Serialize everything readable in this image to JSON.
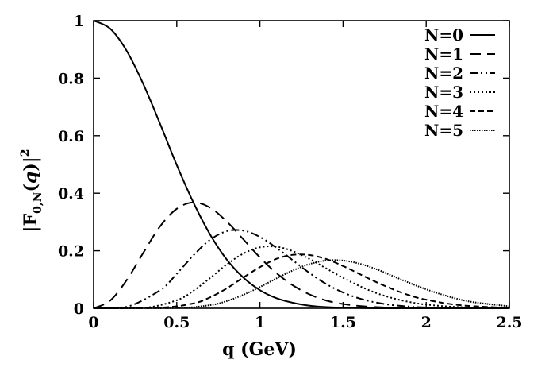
{
  "chart_data": {
    "type": "line",
    "xlabel": "q (GeV)",
    "ylabel": "|F0,N(q)|²",
    "ylabel_parts": {
      "lead": "|F",
      "sub": "0,N",
      "mid": "(",
      "vec": "q",
      "close": ")|",
      "sup": "2"
    },
    "xlim": [
      0,
      2.5
    ],
    "ylim": [
      0,
      1
    ],
    "xticks": [
      0,
      0.5,
      1,
      1.5,
      2,
      2.5
    ],
    "xtick_labels": [
      "0",
      "0.5",
      "1",
      "1.5",
      "2",
      "2.5"
    ],
    "yticks": [
      0,
      0.2,
      0.4,
      0.6,
      0.8,
      1
    ],
    "ytick_labels": [
      "0",
      "0.2",
      "0.4",
      "0.6",
      "0.8",
      "1"
    ],
    "grid": false,
    "legend_position": "top-right",
    "color": "#000000",
    "series": [
      {
        "name": "N=0",
        "style": "solid",
        "x": [
          0,
          0.1,
          0.2,
          0.3,
          0.4,
          0.5,
          0.6,
          0.7,
          0.8,
          0.9,
          1.0,
          1.1,
          1.2,
          1.3,
          1.4,
          1.5,
          1.6,
          1.7,
          1.8,
          2.0,
          2.2,
          2.5
        ],
        "y": [
          1.0,
          0.972,
          0.894,
          0.778,
          0.641,
          0.498,
          0.368,
          0.257,
          0.17,
          0.107,
          0.063,
          0.035,
          0.019,
          0.009,
          0.004,
          0.002,
          0.001,
          0.0,
          0.0,
          0.0,
          0.0,
          0.0
        ]
      },
      {
        "name": "N=1",
        "style": "dashed",
        "x": [
          0,
          0.1,
          0.2,
          0.3,
          0.4,
          0.5,
          0.6,
          0.7,
          0.8,
          0.9,
          1.0,
          1.1,
          1.2,
          1.3,
          1.4,
          1.5,
          1.6,
          1.7,
          1.8,
          2.0,
          2.2,
          2.5
        ],
        "y": [
          0.0,
          0.027,
          0.099,
          0.194,
          0.285,
          0.346,
          0.368,
          0.35,
          0.302,
          0.24,
          0.177,
          0.122,
          0.079,
          0.048,
          0.027,
          0.015,
          0.008,
          0.004,
          0.002,
          0.0,
          0.0,
          0.0
        ]
      },
      {
        "name": "N=2",
        "style": "dashdotdot",
        "x": [
          0,
          0.2,
          0.4,
          0.5,
          0.6,
          0.7,
          0.8,
          0.9,
          1.0,
          1.1,
          1.2,
          1.3,
          1.4,
          1.5,
          1.6,
          1.7,
          1.8,
          1.9,
          2.0,
          2.2,
          2.5
        ],
        "y": [
          0.0,
          0.005,
          0.063,
          0.12,
          0.184,
          0.238,
          0.268,
          0.27,
          0.248,
          0.21,
          0.166,
          0.122,
          0.084,
          0.055,
          0.034,
          0.02,
          0.011,
          0.006,
          0.003,
          0.001,
          0.0
        ]
      },
      {
        "name": "N=3",
        "style": "dotted",
        "x": [
          0,
          0.3,
          0.5,
          0.6,
          0.7,
          0.8,
          0.9,
          1.0,
          1.1,
          1.2,
          1.3,
          1.4,
          1.5,
          1.6,
          1.7,
          1.8,
          1.9,
          2.0,
          2.2,
          2.5
        ],
        "y": [
          0.0,
          0.001,
          0.028,
          0.061,
          0.105,
          0.152,
          0.19,
          0.212,
          0.214,
          0.198,
          0.171,
          0.138,
          0.106,
          0.077,
          0.053,
          0.035,
          0.022,
          0.013,
          0.004,
          0.0
        ]
      },
      {
        "name": "N=4",
        "style": "shortdash",
        "x": [
          0,
          0.4,
          0.6,
          0.7,
          0.8,
          0.9,
          1.0,
          1.1,
          1.2,
          1.3,
          1.4,
          1.5,
          1.6,
          1.7,
          1.8,
          1.9,
          2.0,
          2.2,
          2.5
        ],
        "y": [
          0.0,
          0.002,
          0.017,
          0.038,
          0.069,
          0.107,
          0.143,
          0.172,
          0.186,
          0.185,
          0.171,
          0.147,
          0.119,
          0.091,
          0.066,
          0.045,
          0.03,
          0.011,
          0.001
        ]
      },
      {
        "name": "N=5",
        "style": "densedot",
        "x": [
          0,
          0.5,
          0.7,
          0.8,
          0.9,
          1.0,
          1.1,
          1.2,
          1.3,
          1.4,
          1.5,
          1.6,
          1.7,
          1.8,
          1.9,
          2.0,
          2.1,
          2.2,
          2.3,
          2.5
        ],
        "y": [
          0.0,
          0.001,
          0.011,
          0.025,
          0.047,
          0.074,
          0.104,
          0.132,
          0.154,
          0.166,
          0.166,
          0.155,
          0.136,
          0.112,
          0.088,
          0.066,
          0.047,
          0.031,
          0.02,
          0.007
        ]
      }
    ]
  }
}
